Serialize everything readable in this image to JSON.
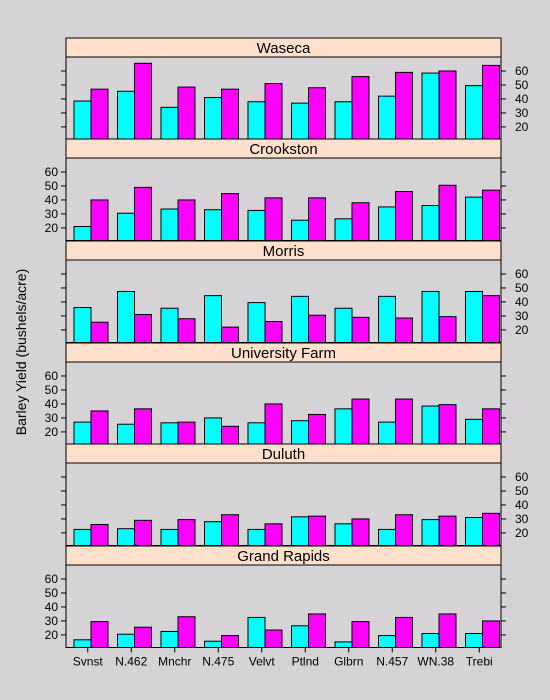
{
  "chart_data": {
    "type": "bar",
    "ylabel": "Barley Yield (bushels/acre)",
    "xlabel": "",
    "categories": [
      "Svnst",
      "N.462",
      "Mnchr",
      "N.475",
      "Velvt",
      "Ptlnd",
      "Glbrn",
      "N.457",
      "WN.38",
      "Trebi"
    ],
    "yticks": [
      20,
      30,
      40,
      50,
      60
    ],
    "ylim": [
      11,
      70
    ],
    "grid": false,
    "series_colors": [
      "#00ffff",
      "#ff00ff"
    ],
    "strip_color": "#ffe0cc",
    "panels": [
      {
        "name": "Waseca",
        "values": [
          [
            38.5,
            47.0
          ],
          [
            45.5,
            65.5
          ],
          [
            34.0,
            48.5
          ],
          [
            41.0,
            47.0
          ],
          [
            38.0,
            51.0
          ],
          [
            37.0,
            48.0
          ],
          [
            38.0,
            56.0
          ],
          [
            42.0,
            59.0
          ],
          [
            58.5,
            60.0
          ],
          [
            49.5,
            64.0
          ]
        ]
      },
      {
        "name": "Crookston",
        "values": [
          [
            21.0,
            40.0
          ],
          [
            30.5,
            49.0
          ],
          [
            33.5,
            40.0
          ],
          [
            33.0,
            44.5
          ],
          [
            32.5,
            41.5
          ],
          [
            25.5,
            41.5
          ],
          [
            26.5,
            38.0
          ],
          [
            35.0,
            46.0
          ],
          [
            36.0,
            50.5
          ],
          [
            42.0,
            47.0
          ]
        ]
      },
      {
        "name": "Morris",
        "values": [
          [
            36.0,
            25.5
          ],
          [
            47.5,
            31.0
          ],
          [
            35.5,
            28.0
          ],
          [
            44.5,
            22.0
          ],
          [
            39.5,
            26.0
          ],
          [
            44.0,
            30.5
          ],
          [
            35.5,
            29.0
          ],
          [
            44.0,
            28.5
          ],
          [
            47.5,
            29.5
          ],
          [
            47.5,
            44.5
          ]
        ]
      },
      {
        "name": "University Farm",
        "values": [
          [
            27.0,
            35.0
          ],
          [
            25.5,
            36.5
          ],
          [
            26.5,
            27.0
          ],
          [
            30.0,
            24.0
          ],
          [
            26.5,
            40.0
          ],
          [
            28.0,
            32.5
          ],
          [
            36.5,
            43.5
          ],
          [
            27.0,
            43.5
          ],
          [
            38.5,
            39.5
          ],
          [
            29.0,
            36.5
          ]
        ]
      },
      {
        "name": "Duluth",
        "values": [
          [
            22.5,
            26.0
          ],
          [
            23.0,
            29.0
          ],
          [
            22.5,
            29.5
          ],
          [
            28.0,
            33.0
          ],
          [
            22.5,
            26.5
          ],
          [
            31.5,
            32.0
          ],
          [
            26.5,
            30.0
          ],
          [
            22.5,
            33.0
          ],
          [
            29.5,
            32.0
          ],
          [
            31.0,
            34.0
          ]
        ]
      },
      {
        "name": "Grand Rapids",
        "values": [
          [
            16.5,
            29.5
          ],
          [
            20.5,
            25.5
          ],
          [
            22.5,
            33.0
          ],
          [
            15.5,
            19.5
          ],
          [
            32.5,
            23.5
          ],
          [
            26.5,
            35.0
          ],
          [
            15.0,
            29.5
          ],
          [
            19.5,
            32.5
          ],
          [
            21.0,
            35.0
          ],
          [
            21.0,
            30.0
          ]
        ]
      }
    ]
  }
}
